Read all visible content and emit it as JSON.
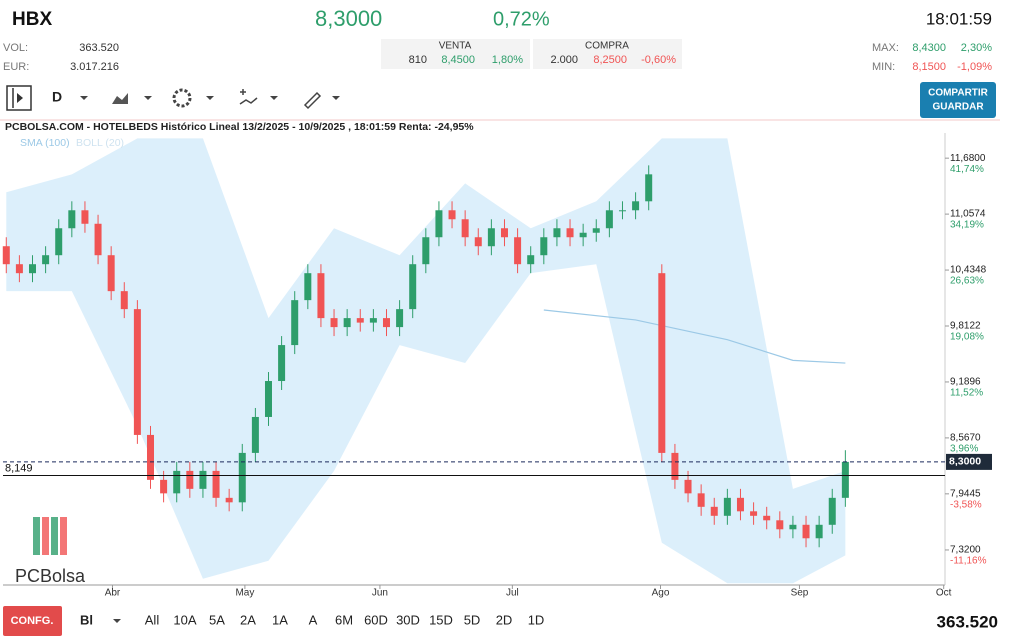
{
  "header": {
    "symbol": "HBX",
    "price": "8,3000",
    "change": "0,72%",
    "time": "18:01:59",
    "vol_label": "VOL:",
    "vol": "363.520",
    "eur_label": "EUR:",
    "eur": "3.017.216",
    "sell": {
      "title": "VENTA",
      "qty": "810",
      "price": "8,4500",
      "pct": "1,80%"
    },
    "buy": {
      "title": "COMPRA",
      "qty": "2.000",
      "price": "8,2500",
      "pct": "-0,60%"
    },
    "max_label": "MAX:",
    "max": "8,4300",
    "max_pct": "2,30%",
    "min_label": "MIN:",
    "min": "8,1500",
    "min_pct": "-1,09%"
  },
  "toolbar": {
    "period": "D",
    "button": [
      "COMPARTIR",
      "GUARDAR"
    ]
  },
  "chart_data": {
    "type": "candlestick",
    "title": "PCBOLSA.COM - HOTELBEDS Histórico Lineal 13/2/2025 - 10/9/2025 , 18:01:59 Renta: -24,95%",
    "logo": "PCBolsa",
    "up_color": "#2e9e6b",
    "down_color": "#f05454",
    "open": [
      10.7,
      10.5,
      10.4,
      10.5,
      10.6,
      10.9,
      11.1,
      10.95,
      10.6,
      10.2,
      10.0,
      8.6,
      8.1,
      7.95,
      8.2,
      8.0,
      8.2,
      7.9,
      7.85,
      8.4,
      8.8,
      9.2,
      9.6,
      10.1,
      10.4,
      9.9,
      9.8,
      9.9,
      9.85,
      9.9,
      9.8,
      10.0,
      10.5,
      10.8,
      11.1,
      11.0,
      10.8,
      10.7,
      10.9,
      10.8,
      10.5,
      10.6,
      10.8,
      10.9,
      10.8,
      10.85,
      10.9,
      11.1,
      11.1,
      11.2,
      10.4,
      8.4,
      8.1,
      7.95,
      7.8,
      7.7,
      7.9,
      7.75,
      7.7,
      7.65,
      7.55,
      7.6,
      7.45,
      7.6,
      7.9
    ],
    "high": [
      10.8,
      10.6,
      10.6,
      10.7,
      11.0,
      11.2,
      11.2,
      11.05,
      10.7,
      10.3,
      10.1,
      8.7,
      8.2,
      8.3,
      8.3,
      8.3,
      8.3,
      8.0,
      8.5,
      8.9,
      9.3,
      9.7,
      10.2,
      10.5,
      10.5,
      10.0,
      10.0,
      10.0,
      10.0,
      10.0,
      10.1,
      10.6,
      10.9,
      11.2,
      11.2,
      11.1,
      10.9,
      11.0,
      11.0,
      10.9,
      10.7,
      10.9,
      11.0,
      11.0,
      10.95,
      11.0,
      11.2,
      11.2,
      11.3,
      11.6,
      10.5,
      8.5,
      8.2,
      8.05,
      7.9,
      8.0,
      8.0,
      7.85,
      7.8,
      7.75,
      7.7,
      7.7,
      7.7,
      8.0,
      8.43
    ],
    "low": [
      10.4,
      10.3,
      10.3,
      10.4,
      10.5,
      10.8,
      10.85,
      10.5,
      10.1,
      9.9,
      8.5,
      8.0,
      7.85,
      7.85,
      7.9,
      7.9,
      7.8,
      7.75,
      7.75,
      8.3,
      8.7,
      9.1,
      9.5,
      10.0,
      9.8,
      9.7,
      9.7,
      9.75,
      9.75,
      9.7,
      9.7,
      9.9,
      10.4,
      10.7,
      10.9,
      10.7,
      10.6,
      10.6,
      10.7,
      10.4,
      10.4,
      10.5,
      10.7,
      10.7,
      10.7,
      10.75,
      10.8,
      11.0,
      11.0,
      11.1,
      8.3,
      8.0,
      7.85,
      7.7,
      7.6,
      7.6,
      7.65,
      7.6,
      7.55,
      7.45,
      7.45,
      7.35,
      7.35,
      7.5,
      7.8
    ],
    "close": [
      10.5,
      10.4,
      10.5,
      10.6,
      10.9,
      11.1,
      10.95,
      10.6,
      10.2,
      10.0,
      8.6,
      8.1,
      7.95,
      8.2,
      8.0,
      8.2,
      7.9,
      7.85,
      8.4,
      8.8,
      9.2,
      9.6,
      10.1,
      10.4,
      9.9,
      9.8,
      9.9,
      9.85,
      9.9,
      9.8,
      10.0,
      10.5,
      10.8,
      11.1,
      11.0,
      10.8,
      10.7,
      10.9,
      10.8,
      10.5,
      10.6,
      10.8,
      10.9,
      10.8,
      10.85,
      10.9,
      11.1,
      11.1,
      11.2,
      11.5,
      8.4,
      8.1,
      7.95,
      7.8,
      7.7,
      7.9,
      7.75,
      7.7,
      7.65,
      7.55,
      7.6,
      7.45,
      7.6,
      7.9,
      8.3
    ],
    "bollinger": {
      "name": "BOLL (20)",
      "color": "#d6ecfa",
      "x": [
        0,
        5,
        10,
        15,
        20,
        25,
        30,
        35,
        40,
        45,
        50,
        55,
        60,
        64
      ],
      "upper": [
        11.3,
        11.5,
        11.9,
        11.9,
        9.9,
        10.9,
        10.6,
        11.4,
        10.9,
        11.2,
        11.9,
        11.9,
        8.0,
        8.2
      ],
      "lower": [
        10.2,
        10.2,
        8.7,
        7.0,
        7.2,
        8.2,
        9.6,
        9.4,
        10.4,
        10.5,
        7.4,
        6.95,
        6.95,
        7.26
      ]
    },
    "sma": {
      "name": "SMA (100)",
      "color": "#9cc9e6",
      "x": [
        41,
        48,
        55,
        60,
        64
      ],
      "values": [
        9.99,
        9.88,
        9.66,
        9.43,
        9.4
      ]
    },
    "price_line": {
      "value": 8.3,
      "label": "8,3000"
    },
    "ref_line": {
      "value": 8.149,
      "label": "8,149"
    },
    "ylim": [
      6.93,
      11.96
    ],
    "yticks": [
      {
        "value": 11.68,
        "label": "11,6800"
      },
      {
        "value": 11.0574,
        "label": "11,0574"
      },
      {
        "value": 10.4348,
        "label": "10,4348"
      },
      {
        "value": 9.8122,
        "label": "9,8122"
      },
      {
        "value": 9.1896,
        "label": "9,1896"
      },
      {
        "value": 8.567,
        "label": "8,5670"
      },
      {
        "value": 7.9445,
        "label": "7,9445"
      },
      {
        "value": 7.32,
        "label": "7,3200"
      }
    ],
    "ytick_changes": [
      "41,74%",
      "34,19%",
      "26,63%",
      "19,08%",
      "11,52%",
      "3,96%",
      "-3,58%",
      "-11,16%"
    ],
    "xlim": [
      -0.25,
      71.6
    ],
    "xticks": [
      {
        "value": 8.1,
        "label": "Abr"
      },
      {
        "value": 18.2,
        "label": "May"
      },
      {
        "value": 28.5,
        "label": "Jun"
      },
      {
        "value": 38.6,
        "label": "Jul"
      },
      {
        "value": 49.9,
        "label": "Ago"
      },
      {
        "value": 60.5,
        "label": "Sep"
      },
      {
        "value": 71.5,
        "label": "Oct"
      }
    ]
  },
  "footer": {
    "config": "CONFG.",
    "mode": "Bl",
    "ranges": [
      "All",
      "10A",
      "5A",
      "2A",
      "1A",
      "A",
      "6M",
      "60D",
      "30D",
      "15D",
      "5D",
      "2D",
      "1D"
    ],
    "volume": "363.520"
  }
}
